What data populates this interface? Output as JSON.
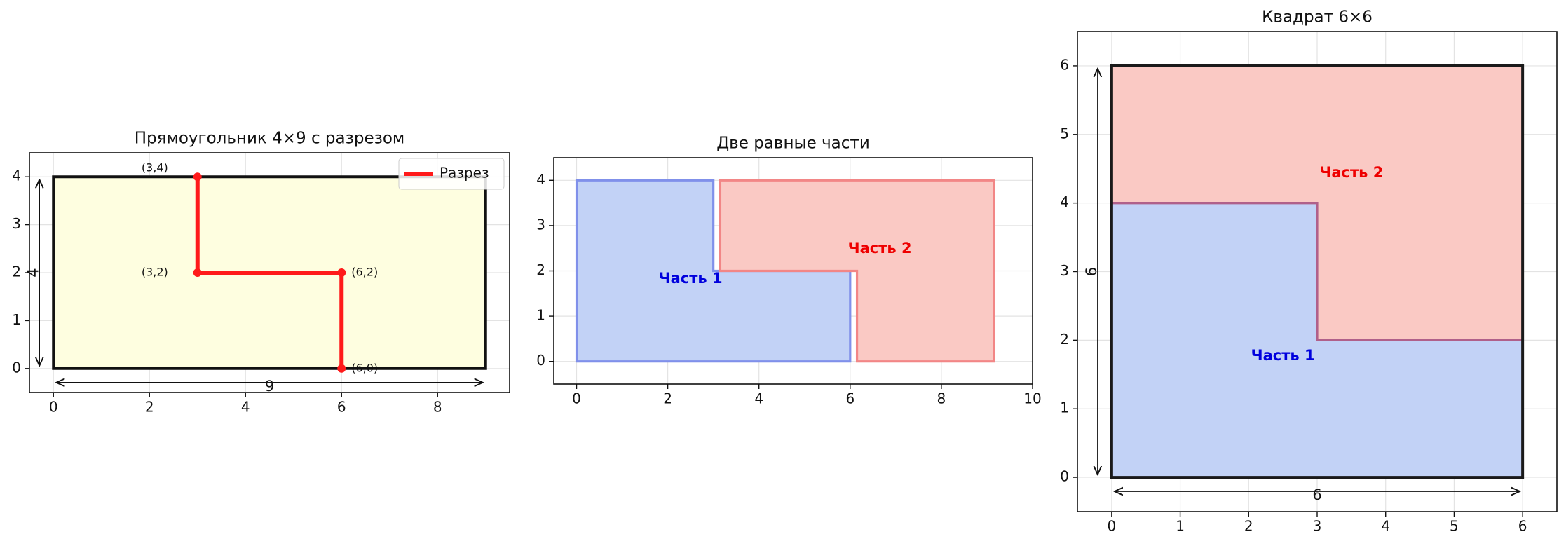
{
  "chart_data": [
    {
      "type": "shapes",
      "title": "Прямоугольник 4×9 с разрезом",
      "xlim": [
        -0.5,
        9.5
      ],
      "ylim": [
        -0.5,
        4.5
      ],
      "xticks": [
        0,
        2,
        4,
        6,
        8
      ],
      "yticks": [
        0,
        1,
        2,
        3,
        4
      ],
      "grid": true,
      "legend": "upper right",
      "width_label": "9",
      "height_label": "4",
      "series": [
        {
          "kind": "polygon",
          "x": [
            0,
            9,
            9,
            0
          ],
          "y": [
            0,
            0,
            4,
            4
          ],
          "color": "#111111",
          "fill": "#fefee0"
        },
        {
          "kind": "line",
          "name": "Разрез",
          "x": [
            3,
            3,
            6,
            6
          ],
          "y": [
            4,
            2,
            2,
            0
          ],
          "color": "#ff1a1a",
          "markers": true,
          "point_labels": [
            "(3,4)",
            "(3,2)",
            "(6,2)",
            "(6,0)"
          ]
        }
      ]
    },
    {
      "type": "shapes",
      "title": "Две равные части",
      "xlim": [
        -0.5,
        10
      ],
      "ylim": [
        -0.5,
        4.5
      ],
      "xticks": [
        0,
        2,
        4,
        6,
        8,
        10
      ],
      "yticks": [
        0,
        1,
        2,
        3,
        4
      ],
      "grid": true,
      "series": [
        {
          "kind": "polygon",
          "name": "Часть 1",
          "x": [
            0,
            6,
            6,
            3,
            3,
            0
          ],
          "y": [
            0,
            0,
            2,
            2,
            4,
            4
          ],
          "color": "#8090ea",
          "fill": "#c2d2f6",
          "label_color": "#0000dd"
        },
        {
          "kind": "polygon",
          "name": "Часть 2",
          "x": [
            3.15,
            3.15,
            9.15,
            9.15,
            6.15,
            6.15
          ],
          "y": [
            2,
            4,
            4,
            0,
            0,
            2
          ],
          "color": "#f28686",
          "fill": "#fac9c4",
          "label_color": "#ee0000"
        }
      ]
    },
    {
      "type": "shapes",
      "title": "Квадрат 6×6",
      "xlim": [
        -0.5,
        6.5
      ],
      "ylim": [
        -0.5,
        6.5
      ],
      "xticks": [
        0,
        1,
        2,
        3,
        4,
        5,
        6
      ],
      "yticks": [
        0,
        1,
        2,
        3,
        4,
        5,
        6
      ],
      "grid": true,
      "width_label": "6",
      "height_label": "6",
      "series": [
        {
          "kind": "polygon",
          "name": "Часть 1",
          "x": [
            0,
            6,
            6,
            3,
            3,
            0
          ],
          "y": [
            0,
            0,
            2,
            2,
            4,
            4
          ],
          "color": "#b0608a",
          "fill": "#c2d2f6",
          "label_color": "#0000dd"
        },
        {
          "kind": "polygon",
          "name": "Часть 2",
          "x": [
            0,
            3,
            3,
            6,
            6,
            0
          ],
          "y": [
            4,
            4,
            2,
            2,
            6,
            6
          ],
          "color": "#b0608a",
          "fill": "#fac9c4",
          "label_color": "#ee0000"
        },
        {
          "kind": "polygon",
          "x": [
            0,
            6,
            6,
            0
          ],
          "y": [
            0,
            0,
            6,
            6
          ],
          "color": "#1a1a1a",
          "fill": "none"
        }
      ]
    }
  ]
}
